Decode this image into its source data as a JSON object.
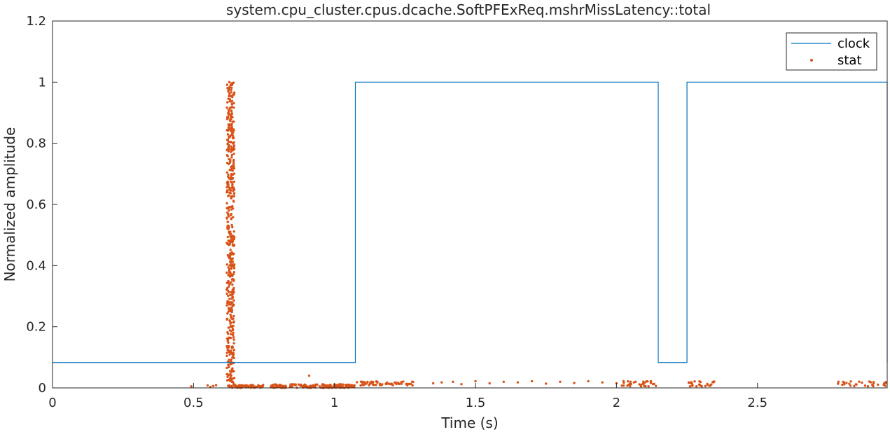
{
  "chart_data": {
    "type": "line",
    "title": "system.cpu_cluster.cpus.dcache.SoftPFExReq.mshrMissLatency::total",
    "xlabel": "Time (s)",
    "ylabel": "Normalized amplitude",
    "xlim": [
      0,
      2.96
    ],
    "ylim": [
      0,
      1.2
    ],
    "xticks": [
      0,
      0.5,
      1,
      1.5,
      2,
      2.5
    ],
    "xtick_labels": [
      "0",
      "0.5",
      "1",
      "1.5",
      "2",
      "2.5"
    ],
    "yticks": [
      0,
      0.2,
      0.4,
      0.6,
      0.8,
      1,
      1.2
    ],
    "ytick_labels": [
      "0",
      "0.2",
      "0.4",
      "0.6",
      "0.8",
      "1",
      "1.2"
    ],
    "grid": true,
    "legend_position": "top-right",
    "colors": {
      "clock": "#0072bd",
      "stat": "#d95319"
    },
    "series": [
      {
        "name": "clock",
        "style": "step",
        "x": [
          0,
          1.074,
          1.074,
          2.148,
          2.148,
          2.25,
          2.25,
          2.96,
          2.96
        ],
        "y": [
          0.083,
          0.083,
          1,
          1,
          0.083,
          0.083,
          1,
          1,
          0.083
        ]
      },
      {
        "name": "stat",
        "style": "scatter",
        "groups": [
          {
            "x": [
              0.492,
              0.55,
              0.56,
              0.57,
              0.58
            ],
            "y": [
              0.005,
              0.008,
              0.003,
              0.006,
              0.009
            ]
          },
          {
            "dense": true,
            "x_range": [
              0.618,
              0.645
            ],
            "y_range": [
              0,
              1
            ],
            "count": 500
          },
          {
            "x": [
              0.627,
              0.632,
              0.636
            ],
            "y": [
              1.0,
              0.99,
              0.995
            ]
          },
          {
            "dense": true,
            "x_range": [
              0.645,
              0.75
            ],
            "y_range": [
              0,
              0.01
            ],
            "count": 60
          },
          {
            "dense": true,
            "x_range": [
              0.77,
              1.07
            ],
            "y_range": [
              0,
              0.012
            ],
            "count": 160
          },
          {
            "x": [
              0.91
            ],
            "y": [
              0.04
            ]
          },
          {
            "dense": true,
            "x_range": [
              1.07,
              1.28
            ],
            "y_range": [
              0.008,
              0.022
            ],
            "count": 60
          },
          {
            "x": [
              1.35,
              1.38,
              1.42,
              1.45,
              1.5,
              1.55,
              1.6,
              1.65,
              1.7,
              1.75,
              1.8,
              1.85,
              1.9,
              1.95,
              2.0,
              2.05,
              2.1
            ],
            "y": [
              0.015,
              0.018,
              0.02,
              0.012,
              0.022,
              0.015,
              0.02,
              0.018,
              0.022,
              0.014,
              0.02,
              0.016,
              0.022,
              0.018,
              0.015,
              0.02,
              0.017
            ]
          },
          {
            "dense": true,
            "x_range": [
              2.0,
              2.148
            ],
            "y_range": [
              0.005,
              0.022
            ],
            "count": 30
          },
          {
            "dense": true,
            "x_range": [
              2.25,
              2.35
            ],
            "y_range": [
              0.005,
              0.022
            ],
            "count": 25
          },
          {
            "dense": true,
            "x_range": [
              2.78,
              2.96
            ],
            "y_range": [
              0.005,
              0.022
            ],
            "count": 30
          }
        ]
      }
    ]
  }
}
